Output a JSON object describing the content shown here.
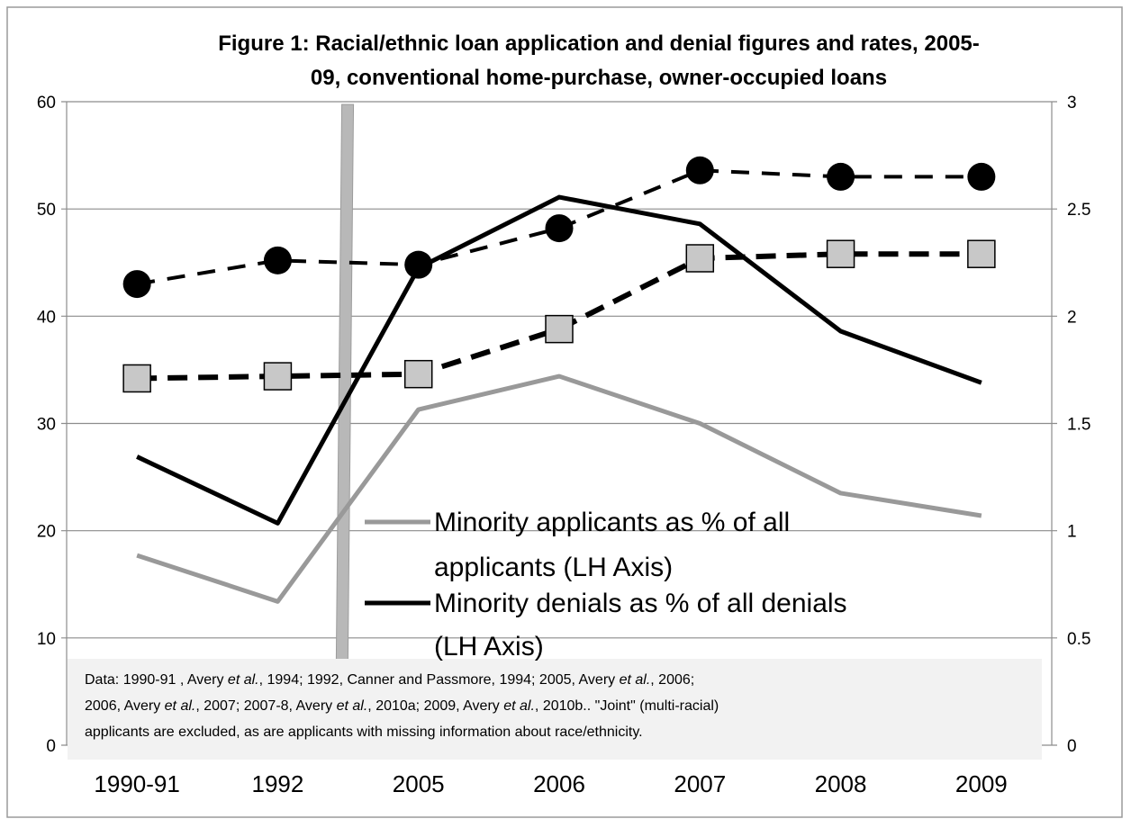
{
  "chart_data": {
    "type": "line",
    "title_lines": [
      "Figure 1: Racial/ethnic loan application and denial figures and rates, 2005-",
      "09, conventional home-purchase, owner-occupied loans"
    ],
    "categories": [
      "1990-91",
      "1992",
      "2005",
      "2006",
      "2007",
      "2008",
      "2009"
    ],
    "y_left": {
      "min": 0,
      "max": 60,
      "step": 10,
      "ticks": [
        "0",
        "10",
        "20",
        "30",
        "40",
        "50",
        "60"
      ]
    },
    "y_right": {
      "min": 0,
      "max": 3,
      "step": 0.5,
      "ticks": [
        "0",
        "0.5",
        "1",
        "1.5",
        "2",
        "2.5",
        "3"
      ]
    },
    "grid": true,
    "series": [
      {
        "name": "Minority applicants as % of all applicants (LH Axis)",
        "axis": "left",
        "style": "solid",
        "color": "#999999",
        "values": [
          17.7,
          13.4,
          31.3,
          34.4,
          30.0,
          23.5,
          21.4
        ]
      },
      {
        "name": "Minority denials as % of all denials (LH Axis)",
        "axis": "left",
        "style": "solid",
        "color": "#000000",
        "values": [
          26.9,
          20.7,
          44.5,
          51.1,
          48.6,
          38.6,
          33.8
        ]
      },
      {
        "axis": "right",
        "style": "dashed",
        "marker": "circle",
        "color": "#000000",
        "values": [
          2.15,
          2.26,
          2.24,
          2.41,
          2.68,
          2.65,
          2.65
        ]
      },
      {
        "axis": "right",
        "style": "dashed",
        "marker": "square",
        "color": "#000000",
        "marker_fill": "#c8c8c8",
        "values": [
          1.71,
          1.72,
          1.73,
          1.94,
          2.27,
          2.29,
          2.29
        ]
      }
    ],
    "legend": {
      "placement": "center-bottom",
      "entries": [
        {
          "line1": "Minority applicants as % of all",
          "line2": "applicants (LH Axis)"
        },
        {
          "line1": "Minority denials as % of all denials",
          "line2": "(LH Axis)"
        }
      ]
    },
    "note": {
      "lines": [
        [
          {
            "t": "Data: 1990-91 , Avery "
          },
          {
            "t": "et al.",
            "i": true
          },
          {
            "t": ", 1994; 1992, Canner and Passmore, 1994; 2005, Avery "
          },
          {
            "t": "et al.",
            "i": true
          },
          {
            "t": ", 2006;"
          }
        ],
        [
          {
            "t": "2006,  Avery "
          },
          {
            "t": "et al.",
            "i": true
          },
          {
            "t": ", 2007; 2007-8, Avery "
          },
          {
            "t": "et al.",
            "i": true
          },
          {
            "t": ", 2010a; 2009, Avery "
          },
          {
            "t": "et al.",
            "i": true
          },
          {
            "t": ", 2010b.. \"Joint\"  (multi-racial)"
          }
        ],
        [
          {
            "t": "applicants are excluded, as are   applicants with missing information about race/ethnicity."
          }
        ]
      ]
    }
  },
  "colors": {
    "gridline": "#8c8c8c",
    "frame": "#9a9a9a",
    "note_background": "#f2f2f2",
    "vertical_band": "#b8b8b8"
  }
}
